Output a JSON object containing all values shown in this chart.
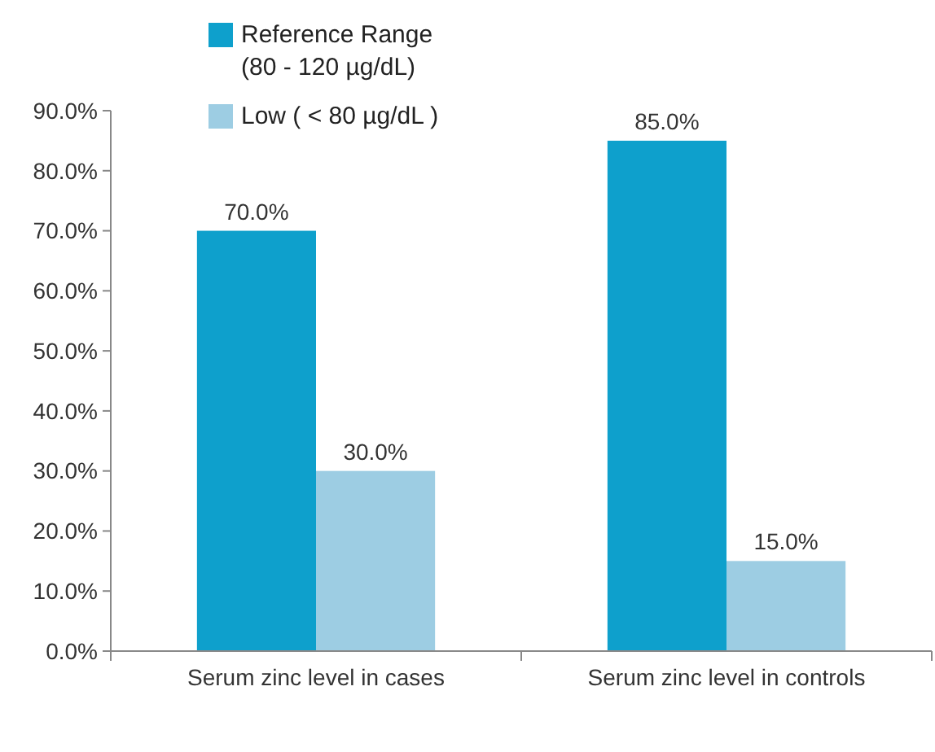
{
  "chart_data": {
    "type": "bar",
    "categories": [
      "Serum zinc level in cases",
      "Serum zinc level in controls"
    ],
    "series": [
      {
        "name": "Reference  Range\n(80 - 120 µg/dL)",
        "color": "#0ea0cc",
        "values": [
          70,
          85
        ],
        "value_labels": [
          "70.0%",
          "85.0%"
        ]
      },
      {
        "name": "Low ( < 80 µg/dL )",
        "color": "#9dcde3",
        "values": [
          30,
          15
        ],
        "value_labels": [
          "30.0%",
          "15.0%"
        ]
      }
    ],
    "ylim": [
      0,
      90
    ],
    "yticks": [
      {
        "value": 0,
        "label": "0.0%"
      },
      {
        "value": 10,
        "label": "10.0%"
      },
      {
        "value": 20,
        "label": "20.0%"
      },
      {
        "value": 30,
        "label": "30.0%"
      },
      {
        "value": 40,
        "label": "40.0%"
      },
      {
        "value": 50,
        "label": "50.0%"
      },
      {
        "value": 60,
        "label": "60.0%"
      },
      {
        "value": 70,
        "label": "70.0%"
      },
      {
        "value": 80,
        "label": "80.0%"
      },
      {
        "value": 90,
        "label": "90.0%"
      }
    ],
    "grid": false,
    "legend": "top left"
  }
}
